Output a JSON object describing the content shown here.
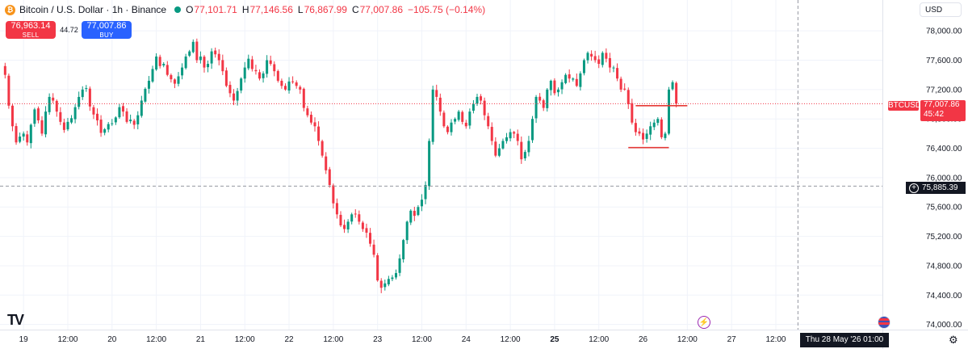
{
  "header": {
    "symbol_title": "Bitcoin / U.S. Dollar · 1h · Binance",
    "coin_icon": "bitcoin-icon",
    "open_label": "O",
    "open_value": "77,101.71",
    "high_label": "H",
    "high_value": "77,146.56",
    "low_label": "L",
    "low_value": "76,867.99",
    "close_label": "C",
    "close_value": "77,007.86",
    "change": "−105.75 (−0.14%)"
  },
  "trade": {
    "sell_price": "76,963.14",
    "sell_label": "SELL",
    "spread": "44.72",
    "buy_price": "77,007.86",
    "buy_label": "BUY"
  },
  "currency": "USD",
  "price_tags": {
    "symbol": "BTCUSD",
    "last_price": "77,007.86",
    "countdown": "45:42",
    "crosshair_price": "75,885.39"
  },
  "crosshair_date": "Thu 28 May '26   01:00",
  "colors": {
    "up": "#089981",
    "down": "#f23645",
    "grid": "#f0f3fa",
    "axis_text": "#131722"
  },
  "chart_data": {
    "type": "candlestick",
    "symbol": "BTCUSD",
    "interval": "1h",
    "y_ticks": [
      74000,
      74400,
      74800,
      75200,
      75600,
      76000,
      76400,
      76800,
      77200,
      77600,
      78000
    ],
    "y_tick_labels": [
      "74,000.00",
      "74,400.00",
      "74,800.00",
      "75,200.00",
      "75,600.00",
      "76,000.00",
      "76,400.00",
      "76,800.00",
      "77,200.00",
      "77,600.00",
      "78,000.00"
    ],
    "ylim": [
      73930,
      78420
    ],
    "x_tick_labels": [
      "19",
      "12:00",
      "20",
      "12:00",
      "21",
      "12:00",
      "22",
      "12:00",
      "23",
      "12:00",
      "24",
      "12:00",
      "25",
      "12:00",
      "26",
      "12:00",
      "27",
      "12:00"
    ],
    "x_tick_index": [
      0,
      12,
      24,
      36,
      48,
      60,
      72,
      84,
      96,
      108,
      120,
      132,
      144,
      156,
      168,
      180,
      192,
      204
    ],
    "first_candle_offset": -5,
    "crosshair_price": 75885.39,
    "crosshair_index": 210,
    "last_price": 77007.86,
    "horizontal_lines": [
      {
        "price": 76980,
        "from_index": 166,
        "to_index": 180
      },
      {
        "price": 76410,
        "from_index": 164,
        "to_index": 175
      }
    ],
    "closes": [
      77400,
      76980,
      76700,
      76480,
      76560,
      76600,
      76480,
      76720,
      76930,
      76780,
      76600,
      76900,
      77100,
      77050,
      76900,
      76760,
      76650,
      76760,
      76810,
      76960,
      77100,
      77200,
      77220,
      76970,
      76860,
      76780,
      76610,
      76660,
      76730,
      76740,
      76820,
      76960,
      76900,
      76760,
      76790,
      76720,
      76850,
      77050,
      77210,
      77320,
      77480,
      77650,
      77520,
      77550,
      77400,
      77340,
      77280,
      77380,
      77500,
      77650,
      77720,
      77850,
      77600,
      77650,
      77500,
      77550,
      77720,
      77680,
      77600,
      77450,
      77250,
      77150,
      77050,
      77180,
      77350,
      77500,
      77620,
      77480,
      77450,
      77350,
      77420,
      77600,
      77550,
      77450,
      77320,
      77250,
      77200,
      77310,
      77300,
      77250,
      77200,
      76950,
      76850,
      76750,
      76700,
      76500,
      76300,
      76100,
      75900,
      75650,
      75500,
      75350,
      75300,
      75400,
      75500,
      75500,
      75400,
      75300,
      75250,
      75100,
      74950,
      74600,
      74500,
      74560,
      74620,
      74640,
      74700,
      74900,
      75150,
      75400,
      75550,
      75480,
      75600,
      75700,
      75900,
      76500,
      77200,
      77100,
      76900,
      76700,
      76620,
      76750,
      76800,
      76900,
      76760,
      76700,
      76900,
      77000,
      77100,
      77050,
      76850,
      76700,
      76500,
      76300,
      76400,
      76500,
      76550,
      76620,
      76600,
      76500,
      76250,
      76350,
      76500,
      76800,
      77100,
      77050,
      76950,
      77200,
      77320,
      77150,
      77200,
      77300,
      77400,
      77350,
      77350,
      77250,
      77420,
      77600,
      77700,
      77650,
      77600,
      77550,
      77700,
      77620,
      77500,
      77500,
      77350,
      77200,
      77200,
      77000,
      76750,
      76620,
      76600,
      76520,
      76600,
      76700,
      76750,
      76800,
      76550,
      76600,
      77200,
      77300,
      77007.86
    ]
  }
}
